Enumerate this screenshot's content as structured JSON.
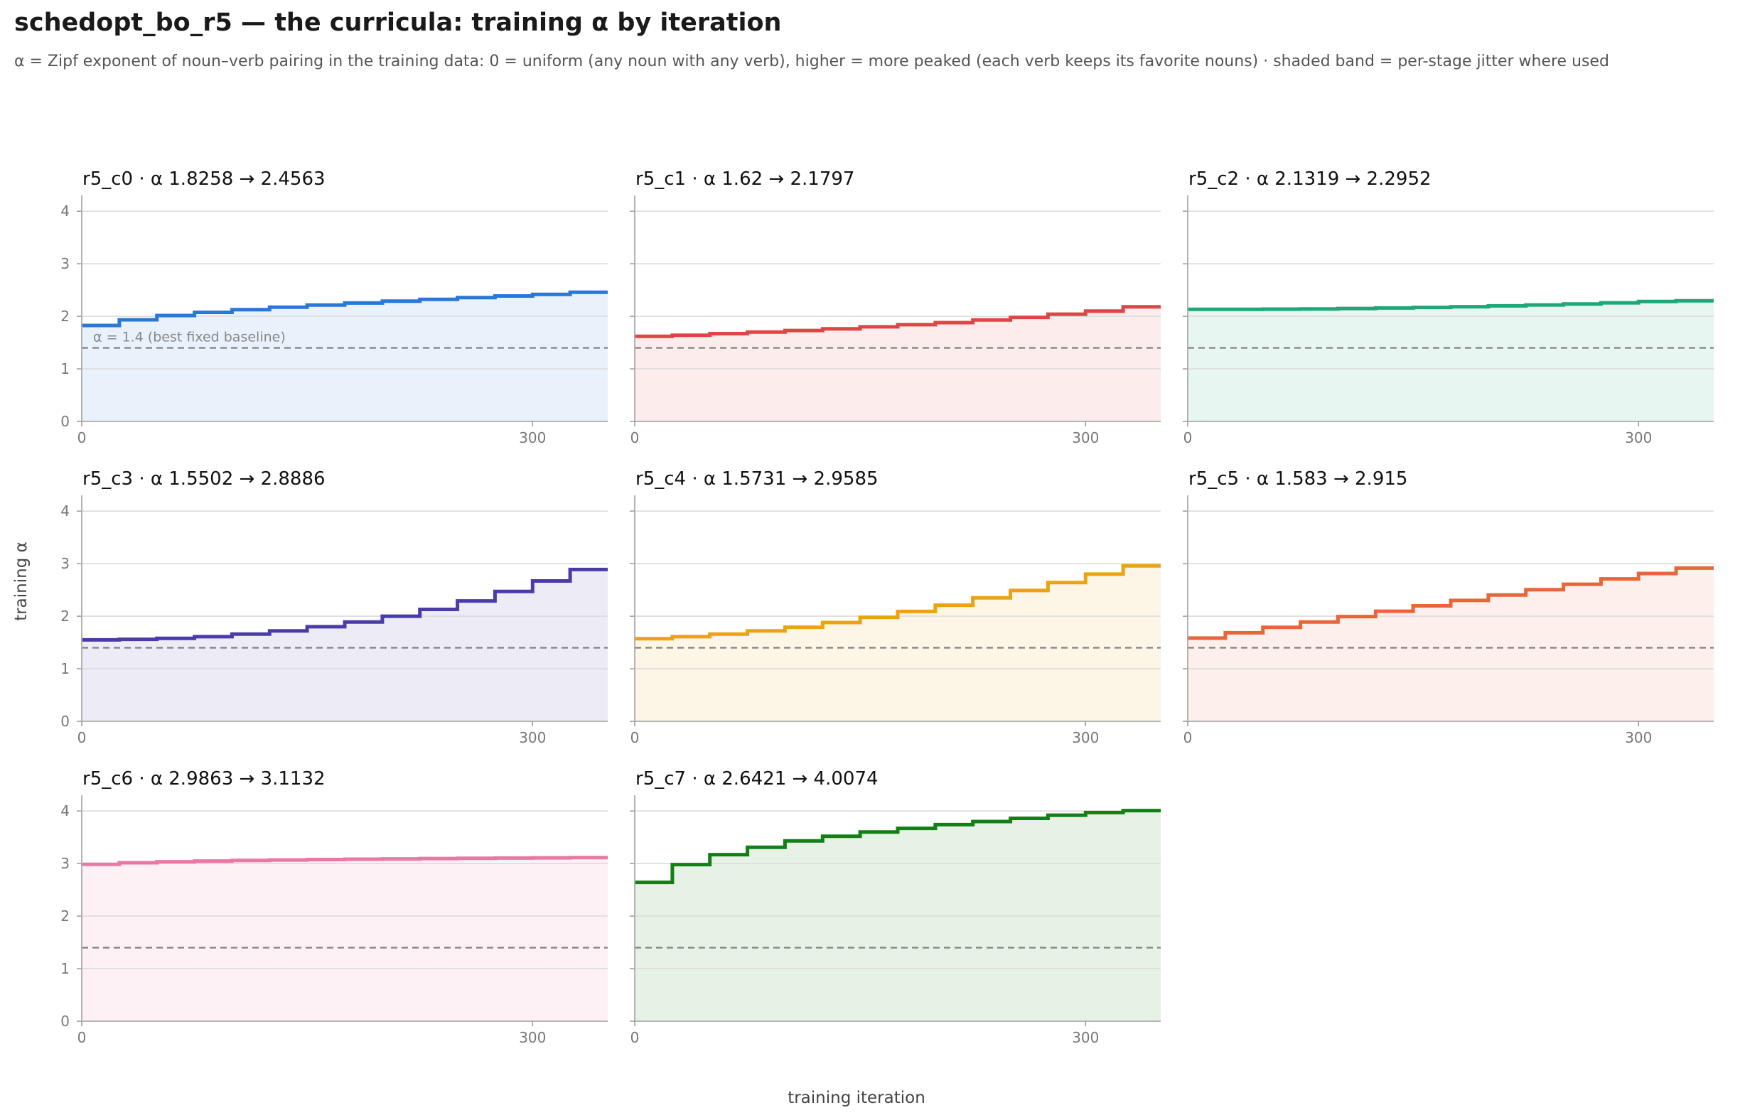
{
  "title": "schedopt_bo_r5 — the curricula: training α by iteration",
  "subtitle": "α = Zipf exponent of noun–verb pairing in the training data: 0 = uniform (any noun with any verb), higher = more peaked (each verb keeps its favorite nouns) · shaded band = per-stage jitter where used",
  "xlabel": "training iteration",
  "ylabel": "training α",
  "chart_data": {
    "type": "line",
    "step": true,
    "grid": true,
    "xlim": [
      0,
      350
    ],
    "ylim": [
      0,
      4.3
    ],
    "xticks": [
      0,
      300
    ],
    "yticks": [
      0,
      1,
      2,
      3,
      4
    ],
    "baseline": {
      "value": 1.4,
      "label": "α = 1.4 (best fixed baseline)"
    },
    "title_separator": "·",
    "panels": [
      {
        "name": "r5_c0",
        "start": "1.8258",
        "end": "2.4563",
        "color": "#2a78d6",
        "values": [
          1.8258,
          1.9343,
          2.0143,
          2.0759,
          2.1274,
          2.1728,
          2.2142,
          2.2527,
          2.2888,
          2.323,
          2.3556,
          2.3869,
          2.4171,
          2.4563
        ]
      },
      {
        "name": "r5_c1",
        "start": "1.62",
        "end": "2.1797",
        "color": "#e04545",
        "values": [
          1.62,
          1.64,
          1.67,
          1.7,
          1.73,
          1.76,
          1.8,
          1.84,
          1.88,
          1.93,
          1.98,
          2.04,
          2.1,
          2.1797
        ]
      },
      {
        "name": "r5_c2",
        "start": "2.1319",
        "end": "2.2952",
        "color": "#1ea77a",
        "values": [
          2.1319,
          2.1329,
          2.136,
          2.1412,
          2.1485,
          2.1578,
          2.1692,
          2.1826,
          2.1981,
          2.2156,
          2.2352,
          2.2568,
          2.2805,
          2.2952
        ]
      },
      {
        "name": "r5_c3",
        "start": "1.5502",
        "end": "2.8886",
        "color": "#4a3ca8",
        "values": [
          1.5502,
          1.56,
          1.58,
          1.61,
          1.66,
          1.72,
          1.8,
          1.89,
          2.0,
          2.13,
          2.29,
          2.47,
          2.67,
          2.8886
        ]
      },
      {
        "name": "r5_c4",
        "start": "1.5731",
        "end": "2.9585",
        "color": "#eba312",
        "values": [
          1.5731,
          1.61,
          1.66,
          1.72,
          1.79,
          1.88,
          1.98,
          2.09,
          2.21,
          2.35,
          2.49,
          2.64,
          2.8,
          2.9585
        ]
      },
      {
        "name": "r5_c5",
        "start": "1.583",
        "end": "2.915",
        "color": "#e8663a",
        "values": [
          1.583,
          1.685,
          1.788,
          1.89,
          1.993,
          2.095,
          2.198,
          2.3,
          2.403,
          2.505,
          2.608,
          2.71,
          2.813,
          2.915
        ]
      },
      {
        "name": "r5_c6",
        "start": "2.9863",
        "end": "3.1132",
        "color": "#e77aa4",
        "values": [
          2.9863,
          3.016,
          3.034,
          3.048,
          3.059,
          3.068,
          3.076,
          3.083,
          3.089,
          3.095,
          3.1,
          3.105,
          3.109,
          3.1132
        ]
      },
      {
        "name": "r5_c7",
        "start": "2.6421",
        "end": "4.0074",
        "color": "#137f17",
        "values": [
          2.6421,
          2.98,
          3.17,
          3.31,
          3.43,
          3.52,
          3.6,
          3.67,
          3.74,
          3.8,
          3.86,
          3.92,
          3.97,
          4.0074
        ]
      }
    ]
  }
}
